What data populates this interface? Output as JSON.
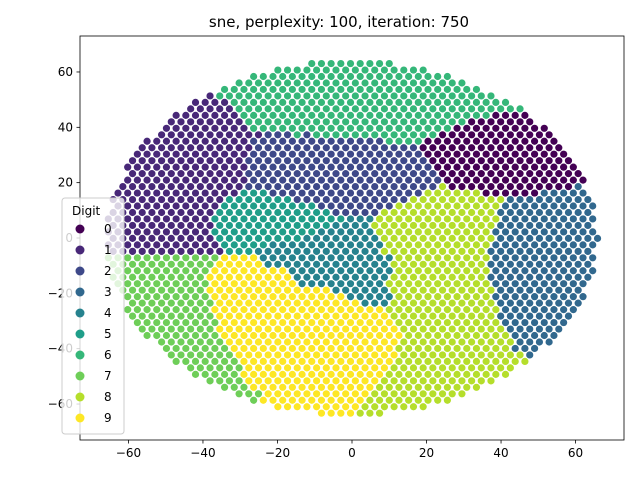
{
  "chart_data": {
    "type": "scatter",
    "title": "sne, perplexity: 100, iteration: 750",
    "xlabel": "",
    "ylabel": "",
    "xlim": [
      -73,
      73
    ],
    "ylim": [
      -73,
      73
    ],
    "x_ticks": [
      -60,
      -40,
      -20,
      0,
      20,
      40,
      60
    ],
    "y_ticks": [
      -60,
      -40,
      -20,
      0,
      20,
      40,
      60
    ],
    "grid": false,
    "legend": {
      "title": "Digit",
      "placement": "center-left"
    },
    "series": [
      {
        "name": "0",
        "color": "#440154",
        "center": [
          38,
          32
        ],
        "spread": [
          12,
          10
        ]
      },
      {
        "name": "1",
        "color": "#482878",
        "center": [
          -48,
          22
        ],
        "spread": [
          14,
          18
        ]
      },
      {
        "name": "2",
        "color": "#3e4989",
        "center": [
          -5,
          22
        ],
        "spread": [
          18,
          10
        ]
      },
      {
        "name": "3",
        "color": "#31688e",
        "center": [
          48,
          -10
        ],
        "spread": [
          12,
          14
        ]
      },
      {
        "name": "4",
        "color": "#26828e",
        "center": [
          -2,
          -12
        ],
        "spread": [
          16,
          14
        ]
      },
      {
        "name": "5",
        "color": "#1f9e89",
        "center": [
          -22,
          8
        ],
        "spread": [
          14,
          8
        ]
      },
      {
        "name": "6",
        "color": "#35b779",
        "center": [
          10,
          50
        ],
        "spread": [
          24,
          10
        ]
      },
      {
        "name": "7",
        "color": "#6ece58",
        "center": [
          -50,
          -30
        ],
        "spread": [
          12,
          16
        ]
      },
      {
        "name": "8",
        "color": "#b5de2b",
        "center": [
          22,
          -10
        ],
        "spread": [
          16,
          18
        ]
      },
      {
        "name": "9",
        "color": "#fde725",
        "center": [
          -15,
          -25
        ],
        "spread": [
          22,
          12
        ]
      }
    ]
  }
}
